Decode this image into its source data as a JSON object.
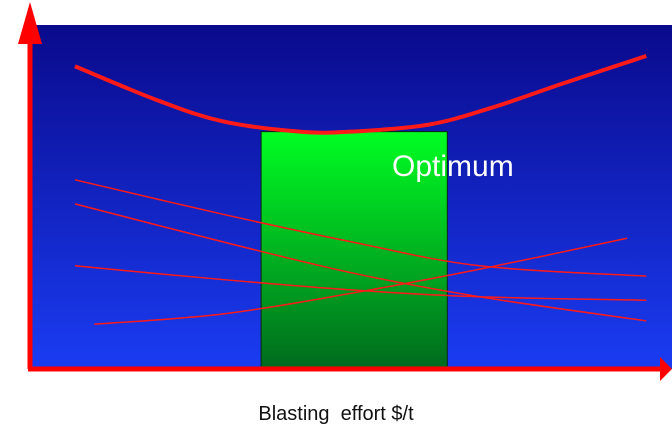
{
  "chart_data": {
    "type": "line",
    "title": "",
    "xlabel": "Blasting  effort $/t",
    "ylabel": "",
    "annotation": "Optimum",
    "axis_color": "#ff0000",
    "background_gradient": [
      "#0a0a8c",
      "#1a3cf2"
    ],
    "optimum_band_gradient": [
      "#00ff22",
      "#006a1e"
    ],
    "curve_color": "#ff1a1a",
    "grid": false,
    "legend": "none",
    "xlim": [
      0,
      1
    ],
    "ylim": [
      0,
      1
    ],
    "optimum_range": [
      0.36,
      0.65
    ],
    "series": [
      {
        "x": [
          0.07,
          0.2,
          0.3,
          0.42,
          0.5,
          0.62,
          0.72,
          0.83,
          0.96
        ],
        "y": [
          0.88,
          0.78,
          0.72,
          0.69,
          0.69,
          0.71,
          0.76,
          0.83,
          0.91
        ]
      },
      {
        "x": [
          0.07,
          0.3,
          0.5,
          0.7,
          0.96
        ],
        "y": [
          0.55,
          0.45,
          0.37,
          0.3,
          0.27
        ]
      },
      {
        "x": [
          0.07,
          0.3,
          0.5,
          0.7,
          0.96
        ],
        "y": [
          0.48,
          0.37,
          0.28,
          0.21,
          0.14
        ]
      },
      {
        "x": [
          0.07,
          0.3,
          0.5,
          0.7,
          0.96
        ],
        "y": [
          0.3,
          0.26,
          0.23,
          0.21,
          0.2
        ]
      },
      {
        "x": [
          0.1,
          0.3,
          0.5,
          0.7,
          0.93
        ],
        "y": [
          0.13,
          0.16,
          0.22,
          0.29,
          0.38
        ]
      }
    ]
  }
}
